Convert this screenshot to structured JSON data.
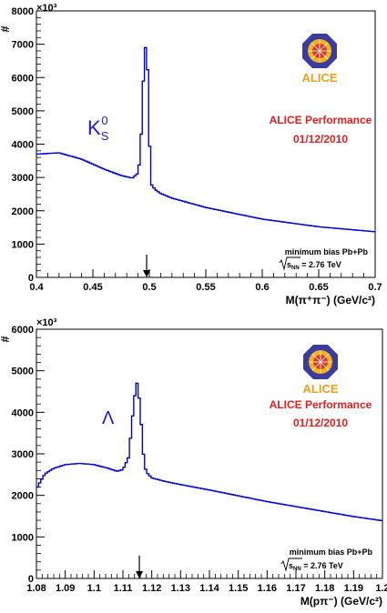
{
  "chart_data": [
    {
      "type": "histogram",
      "ylabel": "#",
      "y_multiplier": "×10³",
      "xlabel": "M(π⁺π⁻) (GeV/c²)",
      "xlim": [
        0.4,
        0.7
      ],
      "ylim": [
        0,
        8000
      ],
      "x_ticks": [
        "0.4",
        "0.45",
        "0.5",
        "0.55",
        "0.6",
        "0.65",
        "0.7"
      ],
      "y_ticks": [
        "0",
        "1000",
        "2000",
        "3000",
        "4000",
        "5000",
        "6000",
        "7000",
        "8000"
      ],
      "particle_label": "K",
      "particle_sub": "S",
      "particle_sup": "0",
      "performance": "ALICE Performance",
      "date": "01/12/2010",
      "logo_text": "ALICE",
      "collision_info": "minimum bias Pb+Pb",
      "energy_sqrt": "s",
      "energy_sub": "NN",
      "energy_value": " = 2.76 TeV",
      "arrow_x": 0.4976,
      "line_color": "#0000cc",
      "x": [
        0.4,
        0.42,
        0.44,
        0.46,
        0.475,
        0.485,
        0.49,
        0.492,
        0.494,
        0.4955,
        0.497,
        0.4985,
        0.5,
        0.502,
        0.505,
        0.51,
        0.52,
        0.55,
        0.6,
        0.65,
        0.7
      ],
      "y": [
        3700,
        3740,
        3550,
        3250,
        3060,
        2980,
        3130,
        3650,
        5250,
        6650,
        7000,
        6200,
        4150,
        2780,
        2640,
        2520,
        2380,
        2100,
        1750,
        1520,
        1370
      ]
    },
    {
      "type": "histogram",
      "ylabel": "#",
      "y_multiplier": "×10³",
      "xlabel": "M(pπ⁻) (GeV/c²)",
      "xlim": [
        1.08,
        1.2
      ],
      "ylim": [
        0,
        6000
      ],
      "x_ticks": [
        "1.08",
        "1.09",
        "1.1",
        "1.11",
        "1.12",
        "1.13",
        "1.14",
        "1.15",
        "1.16",
        "1.17",
        "1.18",
        "1.19",
        "1.2"
      ],
      "y_ticks": [
        "0",
        "1000",
        "2000",
        "3000",
        "4000",
        "5000",
        "6000"
      ],
      "particle_label": "Λ",
      "performance": "ALICE Performance",
      "date": "01/12/2010",
      "logo_text": "ALICE",
      "collision_info": "minimum bias Pb+Pb",
      "energy_sqrt": "s",
      "energy_sub": "NN",
      "energy_value": " = 2.76 TeV",
      "arrow_x": 1.1157,
      "line_color": "#0000cc",
      "x": [
        1.08,
        1.0815,
        1.083,
        1.086,
        1.09,
        1.095,
        1.1,
        1.105,
        1.108,
        1.11,
        1.112,
        1.113,
        1.114,
        1.115,
        1.116,
        1.117,
        1.118,
        1.12,
        1.125,
        1.13,
        1.14,
        1.15,
        1.16,
        1.17,
        1.18,
        1.19,
        1.2
      ],
      "y": [
        2150,
        2350,
        2520,
        2650,
        2740,
        2770,
        2740,
        2650,
        2580,
        2620,
        2920,
        3650,
        4350,
        4750,
        4100,
        3050,
        2570,
        2420,
        2330,
        2260,
        2130,
        1990,
        1850,
        1730,
        1610,
        1490,
        1390
      ]
    }
  ]
}
